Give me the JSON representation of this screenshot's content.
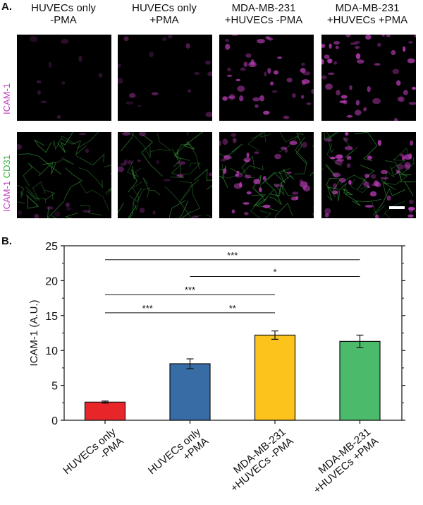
{
  "figure": {
    "panel_a_label": "A.",
    "panel_b_label": "B.",
    "columns": [
      [
        "HUVECs only",
        "-PMA"
      ],
      [
        "HUVECs only",
        "+PMA"
      ],
      [
        "MDA-MB-231",
        "+HUVECs -PMA"
      ],
      [
        "MDA-MB-231",
        "+HUVECs +PMA"
      ]
    ],
    "row1_label": "ICAM-1",
    "row2_label_part1": "ICAM-1",
    "row2_label_part2": "CD31",
    "colors": {
      "magenta": "#c23fbf",
      "green": "#3cb043"
    }
  },
  "chart_data": {
    "type": "bar",
    "categories": [
      [
        "HUVECs only",
        "-PMA"
      ],
      [
        "HUVECs only",
        "+PMA"
      ],
      [
        "MDA-MB-231",
        "+HUVECs -PMA"
      ],
      [
        "MDA-MB-231",
        "+HUVECs +PMA"
      ]
    ],
    "values": [
      2.6,
      8.1,
      12.2,
      11.3
    ],
    "errors": [
      0.15,
      0.7,
      0.6,
      0.9
    ],
    "bar_colors": [
      "#e8262a",
      "#386ca5",
      "#fcc31d",
      "#4cba6b"
    ],
    "ylabel": "ICAM-1 (A.U.)",
    "ylim": [
      0,
      25
    ],
    "yticks": [
      0,
      5,
      10,
      15,
      20,
      25
    ],
    "significance": [
      {
        "from": 0,
        "to": 3,
        "y": 23.0,
        "label": "***"
      },
      {
        "from": 1,
        "to": 3,
        "y": 20.6,
        "label": "*"
      },
      {
        "from": 0,
        "to": 2,
        "y": 18.0,
        "label": "***"
      },
      {
        "from": 0,
        "to": 1,
        "y": 15.4,
        "label": "***"
      },
      {
        "from": 1,
        "to": 2,
        "y": 15.4,
        "label": "**"
      }
    ]
  }
}
